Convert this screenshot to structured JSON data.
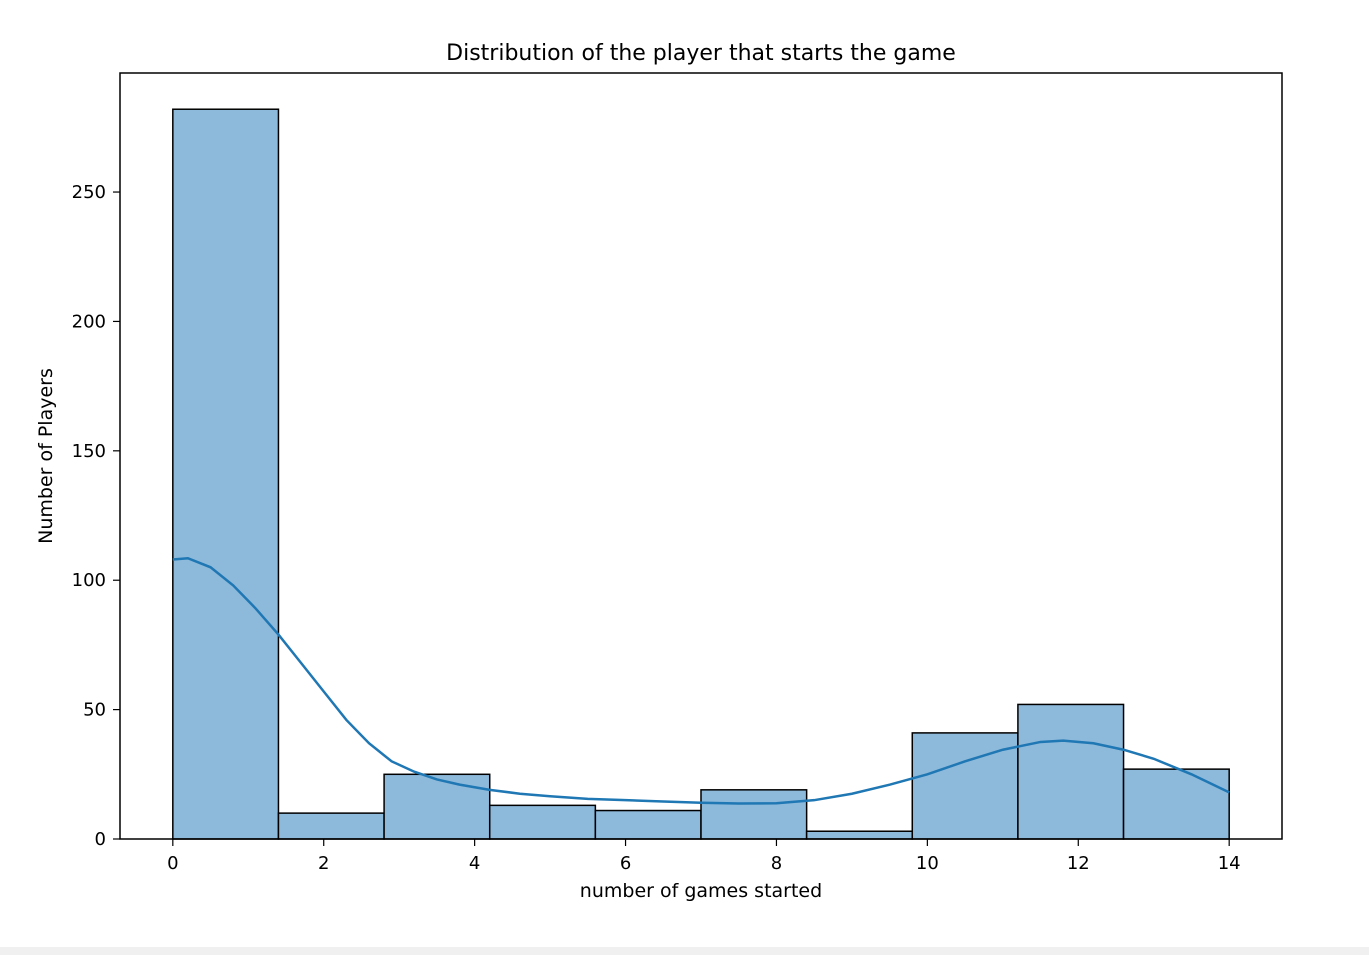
{
  "chart_data": {
    "type": "bar",
    "title": "Distribution of the player that starts the game",
    "xlabel": "number of games started",
    "ylabel": "Number of Players",
    "bins": [
      {
        "x0": 0.0,
        "x1": 1.4,
        "count": 282
      },
      {
        "x0": 1.4,
        "x1": 2.8,
        "count": 10
      },
      {
        "x0": 2.8,
        "x1": 4.2,
        "count": 25
      },
      {
        "x0": 4.2,
        "x1": 5.6,
        "count": 13
      },
      {
        "x0": 5.6,
        "x1": 7.0,
        "count": 11
      },
      {
        "x0": 7.0,
        "x1": 8.4,
        "count": 19
      },
      {
        "x0": 8.4,
        "x1": 9.8,
        "count": 3
      },
      {
        "x0": 9.8,
        "x1": 11.2,
        "count": 41
      },
      {
        "x0": 11.2,
        "x1": 12.6,
        "count": 52
      },
      {
        "x0": 12.6,
        "x1": 14.0,
        "count": 27
      }
    ],
    "kde": {
      "x": [
        0.0,
        0.2,
        0.5,
        0.8,
        1.1,
        1.4,
        1.7,
        2.0,
        2.3,
        2.6,
        2.9,
        3.2,
        3.5,
        3.8,
        4.2,
        4.6,
        5.0,
        5.5,
        6.0,
        6.5,
        7.0,
        7.5,
        8.0,
        8.5,
        9.0,
        9.5,
        10.0,
        10.5,
        11.0,
        11.5,
        11.8,
        12.2,
        12.6,
        13.0,
        13.5,
        14.0
      ],
      "y": [
        108,
        108.5,
        105,
        98,
        89,
        79,
        68,
        57,
        46,
        37,
        30,
        26,
        23,
        21,
        19,
        17.5,
        16.5,
        15.5,
        15,
        14.5,
        14,
        13.7,
        13.8,
        15,
        17.5,
        21,
        25,
        30,
        34.5,
        37.5,
        38,
        37,
        34.5,
        31,
        25,
        18
      ]
    },
    "xlim": [
      -0.7,
      14.7
    ],
    "ylim": [
      0,
      296
    ],
    "xticks": [
      0,
      2,
      4,
      6,
      8,
      10,
      12,
      14
    ],
    "yticks": [
      0,
      50,
      100,
      150,
      200,
      250
    ],
    "grid": false,
    "colors": {
      "bar_fill": "#8db9db",
      "bar_edge": "#000000",
      "kde_line": "#1f77b4"
    }
  }
}
